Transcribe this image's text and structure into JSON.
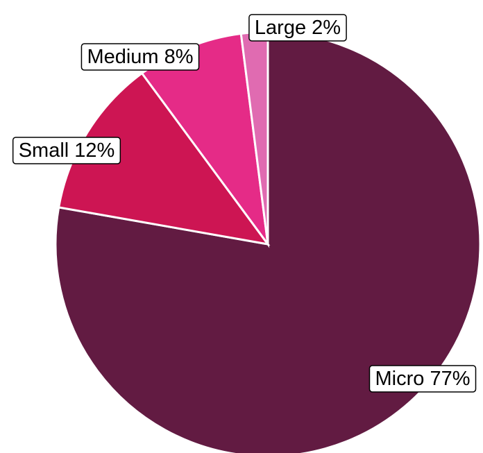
{
  "chart_data": {
    "type": "pie",
    "title": "",
    "slices": [
      {
        "name": "Micro",
        "value": 77,
        "label": "Micro 77%",
        "color": "#621b42"
      },
      {
        "name": "Small",
        "value": 12,
        "label": "Small 12%",
        "color": "#cd1553"
      },
      {
        "name": "Medium",
        "value": 8,
        "label": "Medium 8%",
        "color": "#e52b87"
      },
      {
        "name": "Large",
        "value": 2,
        "label": "Large 2%",
        "color": "#e06bb1"
      }
    ],
    "start_angle": "12 o'clock",
    "direction": "clockwise",
    "legend": "none (labels on slices)"
  }
}
